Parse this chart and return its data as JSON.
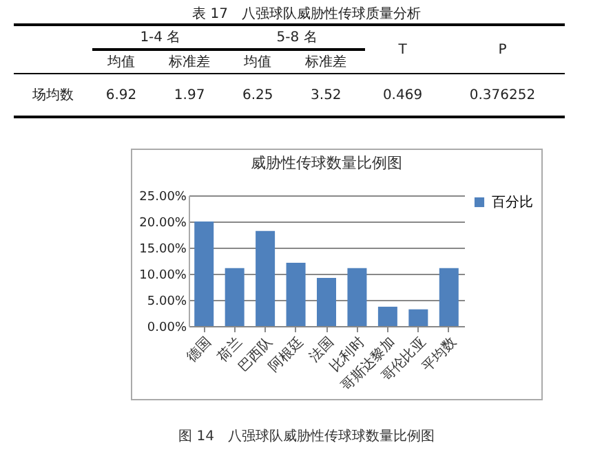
{
  "chart_data": [
    {
      "type": "other",
      "title": "表 17　八强球队威胁性传球质量分析",
      "annotations": [
        "1-4 名",
        "5-8 名",
        "均值",
        "标准差",
        "均值",
        "标准差",
        "T",
        "P",
        "场均数",
        "6.92",
        "1.97",
        "6.25",
        "3.52",
        "0.469",
        "0.376252"
      ]
    },
    {
      "type": "bar",
      "title": "威胁性传球数量比例图",
      "categories": [
        "德国",
        "荷兰",
        "巴西队",
        "阿根廷",
        "法国",
        "比利时",
        "哥斯达黎加",
        "哥伦比亚",
        "平均数"
      ],
      "series": [
        {
          "name": "百分比",
          "color": "#4f81bd",
          "values": [
            20.0,
            11.1,
            18.2,
            12.1,
            9.2,
            11.1,
            3.7,
            3.2,
            11.1
          ]
        }
      ],
      "ylim": [
        0,
        25
      ],
      "yticks": [
        {
          "value": 0,
          "label": "0.00%"
        },
        {
          "value": 5,
          "label": "5.00%"
        },
        {
          "value": 10,
          "label": "10.00%"
        },
        {
          "value": 15,
          "label": "15.00%"
        },
        {
          "value": 20,
          "label": "20.00%"
        },
        {
          "value": 25,
          "label": "25.00%"
        }
      ],
      "grid": "y",
      "legend": "right",
      "annotations": [
        "图 14　八强球队威胁性传球球数量比例图"
      ]
    }
  ]
}
